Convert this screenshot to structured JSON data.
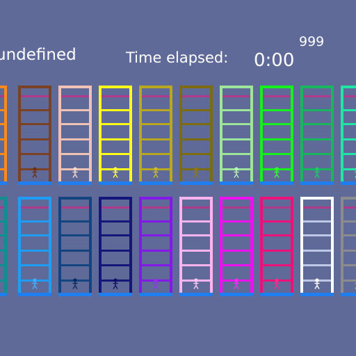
{
  "hud": {
    "player_name": "undefined",
    "time_label": "Time elapsed:",
    "time_value": "0:00",
    "score": "999"
  },
  "ladders": [
    {
      "name": "ladder-orange",
      "color": "#ff8a1a",
      "rung": "#ff8a1a",
      "climber": "#ffb060",
      "row": 0,
      "col": 0
    },
    {
      "name": "ladder-brown",
      "color": "#7a4224",
      "rung": "#7a4224",
      "climber": "#6a3218",
      "row": 0,
      "col": 1
    },
    {
      "name": "ladder-peach",
      "color": "#f0c2b6",
      "rung": "#f0c2b6",
      "climber": "#f8d8cc",
      "row": 0,
      "col": 2
    },
    {
      "name": "ladder-yellow",
      "color": "#ffff1a",
      "rung": "#ffff1a",
      "climber": "#ffff40",
      "row": 0,
      "col": 3
    },
    {
      "name": "ladder-olive-yellow",
      "color": "#b8a820",
      "rung": "#b8a820",
      "climber": "#c8b830",
      "row": 0,
      "col": 4
    },
    {
      "name": "ladder-olive",
      "color": "#7d6b10",
      "rung": "#7d6b10",
      "climber": "#8a7818",
      "row": 0,
      "col": 5
    },
    {
      "name": "ladder-mint",
      "color": "#9be69b",
      "rung": "#9be69b",
      "climber": "#b4f4b4",
      "row": 0,
      "col": 6
    },
    {
      "name": "ladder-green",
      "color": "#16f01c",
      "rung": "#16f01c",
      "climber": "#30ff30",
      "row": 0,
      "col": 7
    },
    {
      "name": "ladder-emerald",
      "color": "#19b65e",
      "rung": "#19b65e",
      "climber": "#20c868",
      "row": 0,
      "col": 8
    },
    {
      "name": "ladder-aquamarine",
      "color": "#20e6a4",
      "rung": "#20e6a4",
      "climber": "#40f0b8",
      "row": 0,
      "col": 9
    },
    {
      "name": "ladder-teal",
      "color": "#0f8f8f",
      "rung": "#0f8f8f",
      "climber": "#20a0a0",
      "row": 1,
      "col": 0
    },
    {
      "name": "ladder-sky-blue",
      "color": "#1f9df6",
      "rung": "#1f9df6",
      "climber": "#40b0ff",
      "row": 1,
      "col": 1
    },
    {
      "name": "ladder-navy",
      "color": "#14447f",
      "rung": "#14447f",
      "climber": "#0a2a60",
      "row": 1,
      "col": 2
    },
    {
      "name": "ladder-dark-blue",
      "color": "#15157a",
      "rung": "#15157a",
      "climber": "#101060",
      "row": 1,
      "col": 3
    },
    {
      "name": "ladder-violet",
      "color": "#8318e8",
      "rung": "#8318e8",
      "climber": "#9430f0",
      "row": 1,
      "col": 4
    },
    {
      "name": "ladder-pink",
      "color": "#ffb4f0",
      "rung": "#ffb4f0",
      "climber": "#ffc8f4",
      "row": 1,
      "col": 5
    },
    {
      "name": "ladder-magenta",
      "color": "#ee10ee",
      "rung": "#ee10ee",
      "climber": "#f030f0",
      "row": 1,
      "col": 6
    },
    {
      "name": "ladder-hot-pink",
      "color": "#f0107a",
      "rung": "#f0107a",
      "climber": "#f82a8c",
      "row": 1,
      "col": 7
    },
    {
      "name": "ladder-white",
      "color": "#ffffff",
      "rung": "#bfc7e8",
      "climber": "#ffffff",
      "row": 1,
      "col": 8
    },
    {
      "name": "ladder-gray",
      "color": "#8c8c8c",
      "rung": "#8c8c8c",
      "climber": "#a0a0a0",
      "row": 1,
      "col": 9
    }
  ]
}
